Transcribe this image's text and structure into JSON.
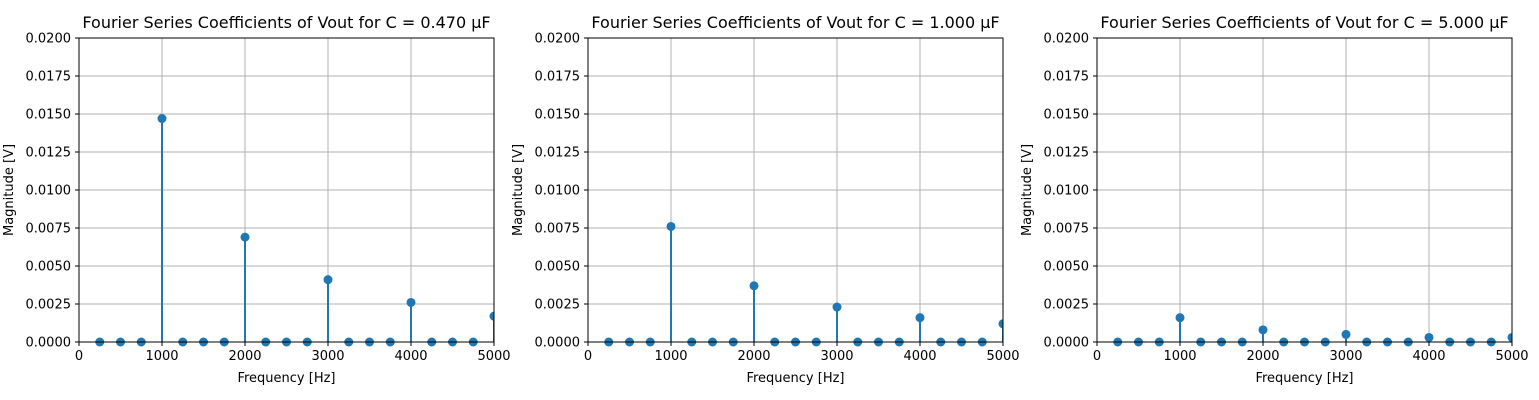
{
  "chart_data": [
    {
      "type": "stem",
      "title": "Fourier Series Coefficients of Vout for C = 0.470 µF",
      "xlabel": "Frequency [Hz]",
      "ylabel": "Magnitude [V]",
      "xlim": [
        0,
        5000
      ],
      "ylim": [
        0,
        0.02
      ],
      "xticks": [
        "0",
        "1000",
        "2000",
        "3000",
        "4000",
        "5000"
      ],
      "yticks": [
        "0.0000",
        "0.0025",
        "0.0050",
        "0.0075",
        "0.0100",
        "0.0125",
        "0.0150",
        "0.0175",
        "0.0200"
      ],
      "grid": true,
      "x": [
        250,
        500,
        750,
        1000,
        1250,
        1500,
        1750,
        2000,
        2250,
        2500,
        2750,
        3000,
        3250,
        3500,
        3750,
        4000,
        4250,
        4500,
        4750,
        5000
      ],
      "y": [
        0,
        0,
        0,
        0.0147,
        0,
        0,
        0,
        0.0069,
        0,
        0,
        0,
        0.0041,
        0,
        0,
        0,
        0.0026,
        0,
        0,
        0,
        0.0017
      ],
      "color": "#1f77b4"
    },
    {
      "type": "stem",
      "title": "Fourier Series Coefficients of Vout for C = 1.000 µF",
      "xlabel": "Frequency [Hz]",
      "ylabel": "Magnitude [V]",
      "xlim": [
        0,
        5000
      ],
      "ylim": [
        0,
        0.02
      ],
      "xticks": [
        "0",
        "1000",
        "2000",
        "3000",
        "4000",
        "5000"
      ],
      "yticks": [
        "0.0000",
        "0.0025",
        "0.0050",
        "0.0075",
        "0.0100",
        "0.0125",
        "0.0150",
        "0.0175",
        "0.0200"
      ],
      "grid": true,
      "x": [
        250,
        500,
        750,
        1000,
        1250,
        1500,
        1750,
        2000,
        2250,
        2500,
        2750,
        3000,
        3250,
        3500,
        3750,
        4000,
        4250,
        4500,
        4750,
        5000
      ],
      "y": [
        0,
        0,
        0,
        0.0076,
        0,
        0,
        0,
        0.0037,
        0,
        0,
        0,
        0.0023,
        0,
        0,
        0,
        0.0016,
        0,
        0,
        0,
        0.0012
      ],
      "color": "#1f77b4"
    },
    {
      "type": "stem",
      "title": "Fourier Series Coefficients of Vout for C = 5.000 µF",
      "xlabel": "Frequency [Hz]",
      "ylabel": "Magnitude [V]",
      "xlim": [
        0,
        5000
      ],
      "ylim": [
        0,
        0.02
      ],
      "xticks": [
        "0",
        "1000",
        "2000",
        "3000",
        "4000",
        "5000"
      ],
      "yticks": [
        "0.0000",
        "0.0025",
        "0.0050",
        "0.0075",
        "0.0100",
        "0.0125",
        "0.0150",
        "0.0175",
        "0.0200"
      ],
      "grid": true,
      "x": [
        250,
        500,
        750,
        1000,
        1250,
        1500,
        1750,
        2000,
        2250,
        2500,
        2750,
        3000,
        3250,
        3500,
        3750,
        4000,
        4250,
        4500,
        4750,
        5000
      ],
      "y": [
        0,
        0,
        0,
        0.0016,
        0,
        0,
        0,
        0.0008,
        0,
        0,
        0,
        0.0005,
        0,
        0,
        0,
        0.0003,
        0,
        0,
        0,
        0.0003
      ],
      "color": "#1f77b4"
    }
  ]
}
